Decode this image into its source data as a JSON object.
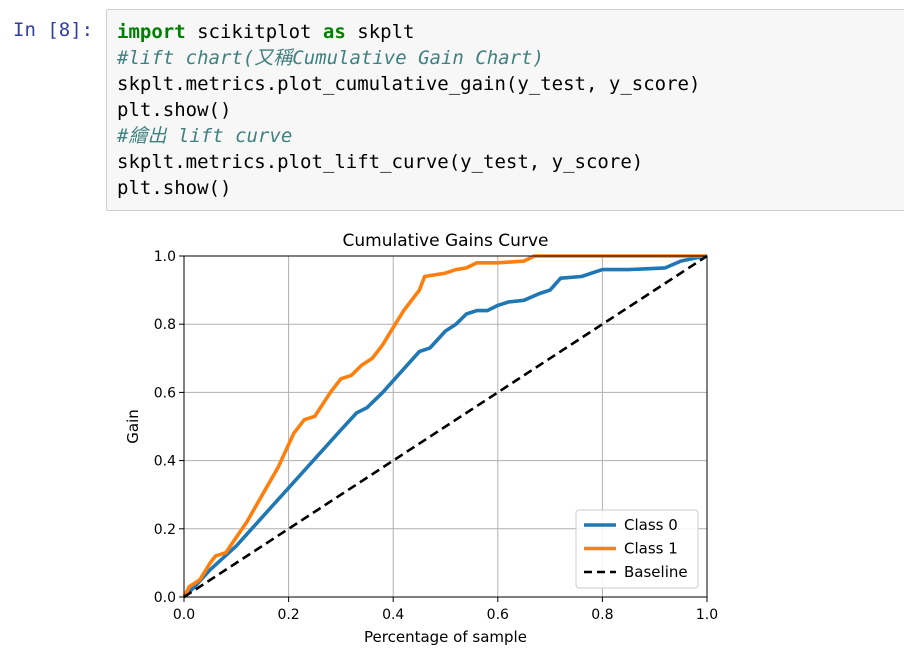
{
  "cell": {
    "prompt": "In [8]:",
    "code_lines": [
      [
        {
          "t": "import",
          "c": "kw"
        },
        {
          "t": " scikitplot ",
          "c": ""
        },
        {
          "t": "as",
          "c": "kw"
        },
        {
          "t": " skplt",
          "c": ""
        }
      ],
      [
        {
          "t": "#lift chart(又稱Cumulative Gain Chart)",
          "c": "cm"
        }
      ],
      [
        {
          "t": "skplt.metrics.plot_cumulative_gain(y_test, y_score)",
          "c": ""
        }
      ],
      [
        {
          "t": "plt.show()",
          "c": ""
        }
      ],
      [
        {
          "t": "#繪出 lift curve",
          "c": "cm"
        }
      ],
      [
        {
          "t": "skplt.metrics.plot_lift_curve(y_test, y_score)",
          "c": ""
        }
      ],
      [
        {
          "t": "plt.show()",
          "c": ""
        }
      ]
    ]
  },
  "chart_data": {
    "type": "line",
    "title": "Cumulative Gains Curve",
    "xlabel": "Percentage of sample",
    "ylabel": "Gain",
    "xlim": [
      0,
      1
    ],
    "ylim": [
      0,
      1
    ],
    "xticks": [
      "0.0",
      "0.2",
      "0.4",
      "0.6",
      "0.8",
      "1.0"
    ],
    "yticks": [
      "0.0",
      "0.2",
      "0.4",
      "0.6",
      "0.8",
      "1.0"
    ],
    "grid": true,
    "legend": "lower right",
    "series": [
      {
        "name": "Class 0",
        "color": "#1f77b4",
        "style": "solid",
        "points": [
          [
            0,
            0
          ],
          [
            0.02,
            0.03
          ],
          [
            0.05,
            0.08
          ],
          [
            0.1,
            0.15
          ],
          [
            0.2,
            0.32
          ],
          [
            0.3,
            0.49
          ],
          [
            0.33,
            0.54
          ],
          [
            0.35,
            0.555
          ],
          [
            0.38,
            0.6
          ],
          [
            0.45,
            0.72
          ],
          [
            0.47,
            0.73
          ],
          [
            0.5,
            0.78
          ],
          [
            0.52,
            0.8
          ],
          [
            0.54,
            0.83
          ],
          [
            0.56,
            0.84
          ],
          [
            0.58,
            0.84
          ],
          [
            0.6,
            0.855
          ],
          [
            0.62,
            0.865
          ],
          [
            0.65,
            0.87
          ],
          [
            0.68,
            0.89
          ],
          [
            0.7,
            0.9
          ],
          [
            0.72,
            0.935
          ],
          [
            0.76,
            0.94
          ],
          [
            0.8,
            0.96
          ],
          [
            0.85,
            0.96
          ],
          [
            0.92,
            0.965
          ],
          [
            0.95,
            0.985
          ],
          [
            0.98,
            0.995
          ],
          [
            1,
            1
          ]
        ]
      },
      {
        "name": "Class 1",
        "color": "#ff7f0e",
        "style": "solid",
        "points": [
          [
            0,
            0
          ],
          [
            0.01,
            0.03
          ],
          [
            0.03,
            0.05
          ],
          [
            0.05,
            0.1
          ],
          [
            0.06,
            0.12
          ],
          [
            0.08,
            0.13
          ],
          [
            0.12,
            0.22
          ],
          [
            0.15,
            0.3
          ],
          [
            0.18,
            0.38
          ],
          [
            0.21,
            0.48
          ],
          [
            0.23,
            0.52
          ],
          [
            0.25,
            0.53
          ],
          [
            0.28,
            0.6
          ],
          [
            0.3,
            0.64
          ],
          [
            0.32,
            0.65
          ],
          [
            0.34,
            0.68
          ],
          [
            0.36,
            0.7
          ],
          [
            0.38,
            0.74
          ],
          [
            0.4,
            0.79
          ],
          [
            0.42,
            0.84
          ],
          [
            0.45,
            0.9
          ],
          [
            0.46,
            0.94
          ],
          [
            0.5,
            0.95
          ],
          [
            0.52,
            0.96
          ],
          [
            0.54,
            0.965
          ],
          [
            0.56,
            0.98
          ],
          [
            0.6,
            0.98
          ],
          [
            0.65,
            0.985
          ],
          [
            0.67,
            1
          ],
          [
            1,
            1
          ]
        ]
      },
      {
        "name": "Baseline",
        "color": "#000000",
        "style": "dashed",
        "points": [
          [
            0,
            0
          ],
          [
            1,
            1
          ]
        ]
      }
    ]
  }
}
